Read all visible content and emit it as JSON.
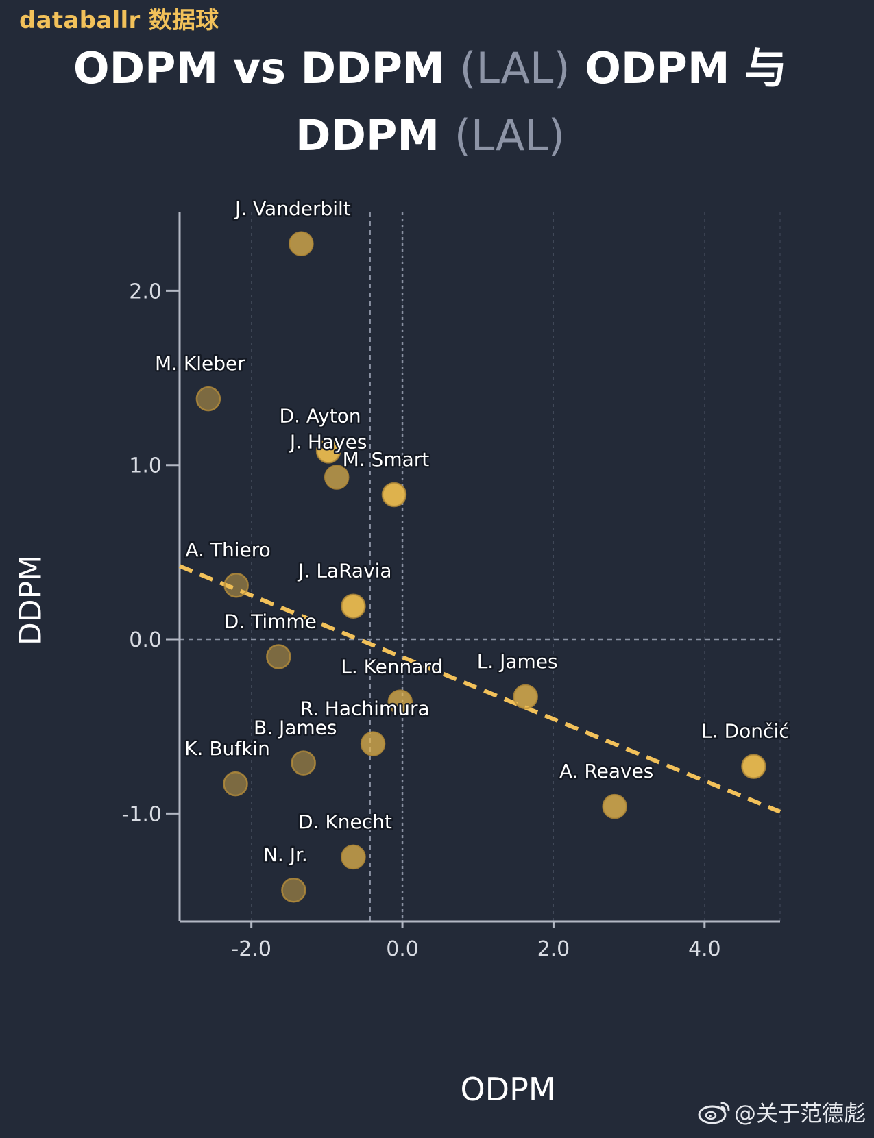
{
  "brand": "databallr 数据球",
  "title": {
    "line1_main": "ODPM vs DDPM",
    "line1_muted": "(LAL)",
    "line1_cn": "ODPM 与",
    "line2_main": "DDPM",
    "line2_muted": "(LAL)"
  },
  "watermark": "@关于范德彪",
  "colors": {
    "background": "#232a38",
    "point_fill": "#e9b94e",
    "trend_line": "#f2c15a",
    "axis": "#b3b8c4",
    "grid": "#5e6678"
  },
  "chart_data": {
    "type": "scatter",
    "xlabel": "ODPM",
    "ylabel": "DDPM",
    "xlim": [
      -2.95,
      5.0
    ],
    "ylim": [
      -1.62,
      2.45
    ],
    "xticks": [
      -2.0,
      0.0,
      2.0,
      4.0
    ],
    "yticks": [
      -1.0,
      0.0,
      1.0,
      2.0
    ],
    "xtick_labels": [
      "-2.0",
      "0.0",
      "2.0",
      "4.0"
    ],
    "ytick_labels": [
      "-1.0",
      "0.0",
      "1.0",
      "2.0"
    ],
    "grid": true,
    "reference_lines": {
      "x_zero": 0.0,
      "x_mean": -0.43,
      "y_zero": 0.0
    },
    "trend_line": {
      "x": [
        -2.95,
        5.0
      ],
      "y": [
        0.42,
        -0.99
      ]
    },
    "points": [
      {
        "name": "J. Vanderbilt",
        "x": -1.34,
        "y": 2.27,
        "opacity": 0.72
      },
      {
        "name": "M. Kleber",
        "x": -2.57,
        "y": 1.38,
        "opacity": 0.45
      },
      {
        "name": "D. Ayton",
        "x": -0.98,
        "y": 1.08,
        "opacity": 0.95
      },
      {
        "name": "J. Hayes",
        "x": -0.87,
        "y": 0.93,
        "opacity": 0.68
      },
      {
        "name": "M. Smart",
        "x": -0.11,
        "y": 0.83,
        "opacity": 0.95
      },
      {
        "name": "A. Thiero",
        "x": -2.2,
        "y": 0.31,
        "opacity": 0.45
      },
      {
        "name": "J. LaRavia",
        "x": -0.65,
        "y": 0.19,
        "opacity": 0.95
      },
      {
        "name": "D. Timme",
        "x": -1.64,
        "y": -0.1,
        "opacity": 0.45
      },
      {
        "name": "L. Kennard",
        "x": -0.03,
        "y": -0.36,
        "opacity": 0.72
      },
      {
        "name": "L. James",
        "x": 1.63,
        "y": -0.33,
        "opacity": 0.78
      },
      {
        "name": "R. Hachimura",
        "x": -0.39,
        "y": -0.6,
        "opacity": 0.72
      },
      {
        "name": "B. James",
        "x": -1.31,
        "y": -0.71,
        "opacity": 0.45
      },
      {
        "name": "K. Bufkin",
        "x": -2.21,
        "y": -0.83,
        "opacity": 0.45
      },
      {
        "name": "L. Dončić",
        "x": 4.65,
        "y": -0.73,
        "opacity": 0.95
      },
      {
        "name": "A. Reaves",
        "x": 2.81,
        "y": -0.96,
        "opacity": 0.78
      },
      {
        "name": "D. Knecht",
        "x": -0.65,
        "y": -1.25,
        "opacity": 0.72
      },
      {
        "name": "N. Jr.",
        "x": -1.44,
        "y": -1.44,
        "opacity": 0.45
      }
    ]
  }
}
